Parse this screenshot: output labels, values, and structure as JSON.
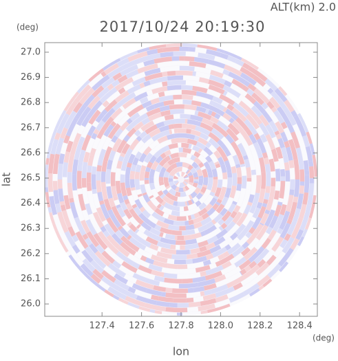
{
  "chart_data": {
    "type": "ppi",
    "title": "2017/10/24 20:19:30",
    "subtitle": "ALT(km) 2.0",
    "x_label": "lon",
    "y_label": "lat",
    "x_unit": "(deg)",
    "y_unit": "(deg)",
    "xlim": [
      127.11,
      128.49
    ],
    "ylim": [
      25.951,
      27.038
    ],
    "xticks": [
      127.4,
      127.6,
      127.8,
      {
        "value": 128,
        "label": "128.0"
      },
      128.2,
      128.4
    ],
    "yticks": [
      {
        "value": 26,
        "label": "26.0"
      },
      26.1,
      26.2,
      26.3,
      26.4,
      26.5,
      26.6,
      26.7,
      26.8,
      26.9,
      {
        "value": 27,
        "label": "27.0"
      }
    ]
  }
}
